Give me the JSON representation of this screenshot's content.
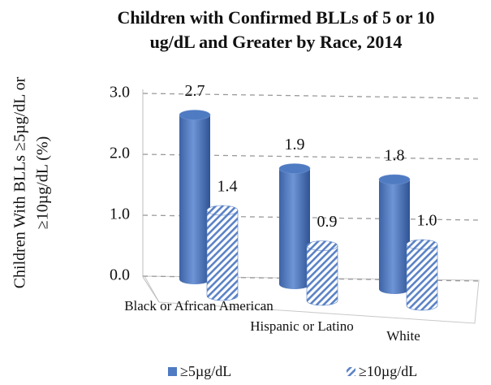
{
  "chart_data": {
    "type": "bar",
    "title": [
      "Children with Confirmed BLLs of 5 or 10",
      "ug/dL and Greater by Race, 2014"
    ],
    "y_label": [
      "Children With BLLs ≥5µg/dL or",
      "≥10µg/dL (%)"
    ],
    "categories": [
      "Black or African American",
      "Hispanic or Latino",
      "White"
    ],
    "series": [
      {
        "name": "≥5µg/dL",
        "color": "#4f7bc2",
        "hatch": false,
        "values": [
          2.7,
          1.9,
          1.8
        ]
      },
      {
        "name": "≥10µg/dL",
        "color": "#4f7bc2",
        "hatch": true,
        "values": [
          1.4,
          0.9,
          1.0
        ],
        "value_labels": [
          "1.4",
          "0.9",
          "1.0"
        ]
      }
    ],
    "ylim": [
      0,
      3
    ],
    "yticks": [
      {
        "value": 0,
        "label": "0.0"
      },
      {
        "value": 1,
        "label": "1.0"
      },
      {
        "value": 2,
        "label": "2.0"
      },
      {
        "value": 3,
        "label": "3.0"
      }
    ],
    "grid": true,
    "legend": "bottom"
  }
}
